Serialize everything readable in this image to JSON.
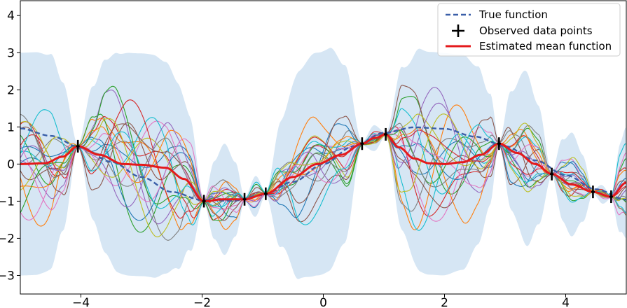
{
  "chart_data": {
    "type": "line",
    "title": "",
    "xlabel": "",
    "ylabel": "",
    "xlim": [
      -5,
      5
    ],
    "ylim": [
      -3.5,
      4.4
    ],
    "x_ticks": [
      -4,
      -2,
      0,
      2,
      4
    ],
    "x_tick_labels": [
      "−4",
      "−2",
      "0",
      "2",
      "4"
    ],
    "y_ticks": [
      -3,
      -2,
      -1,
      0,
      1,
      2,
      3,
      4
    ],
    "y_tick_labels": [
      "−3",
      "−2",
      "−1",
      "0",
      "1",
      "2",
      "3",
      "4"
    ],
    "grid": false,
    "legend": {
      "placement": "top-right",
      "entries": [
        {
          "label": "True function",
          "style": "dashed",
          "color": "#3a5fa8"
        },
        {
          "label": "Observed data points",
          "style": "plus",
          "color": "#000000"
        },
        {
          "label": "Estimated mean function",
          "style": "solid",
          "color": "#e41a1c"
        }
      ]
    },
    "observed_points": {
      "x": [
        -4.05,
        -1.97,
        -1.3,
        -0.95,
        0.64,
        1.03,
        2.9,
        3.77,
        4.45,
        4.75
      ],
      "y": [
        0.48,
        -1.0,
        -0.95,
        -0.8,
        0.55,
        0.8,
        0.55,
        -0.27,
        -0.75,
        -0.88
      ]
    },
    "true_function": {
      "x": [
        -5,
        -4.5,
        -4,
        -3.5,
        -3,
        -2.5,
        -2,
        -1.5,
        -1,
        -0.5,
        0,
        0.5,
        1,
        1.5,
        2,
        2.5,
        3,
        3.5,
        4,
        4.5,
        5
      ],
      "y": [
        0.96,
        0.76,
        0.44,
        0.06,
        -0.35,
        -0.75,
        -0.97,
        -0.99,
        -0.84,
        -0.48,
        0.0,
        0.48,
        0.84,
        0.99,
        0.95,
        0.74,
        0.48,
        0.1,
        -0.3,
        -0.68,
        -0.96
      ]
    },
    "mean_function": {
      "x": [
        -5,
        -4.6,
        -4.3,
        -4.05,
        -3.7,
        -3.3,
        -3.0,
        -2.6,
        -2.3,
        -1.97,
        -1.65,
        -1.3,
        -0.95,
        -0.5,
        -0.1,
        0.3,
        0.64,
        0.85,
        1.03,
        1.25,
        1.5,
        1.75,
        2.0,
        2.3,
        2.6,
        2.9,
        3.2,
        3.5,
        3.77,
        4.1,
        4.45,
        4.75,
        5.0
      ],
      "y": [
        0.0,
        0.02,
        0.2,
        0.48,
        0.25,
        0.0,
        -0.02,
        -0.1,
        -0.4,
        -1.0,
        -0.95,
        -0.95,
        -0.8,
        -0.35,
        0.0,
        0.25,
        0.55,
        0.7,
        0.8,
        0.45,
        0.15,
        0.02,
        0.0,
        0.05,
        0.25,
        0.55,
        0.3,
        0.0,
        -0.27,
        -0.55,
        -0.75,
        -0.88,
        -0.5
      ]
    },
    "confidence_band": {
      "x": [
        -5,
        -4.75,
        -4.5,
        -4.3,
        -4.05,
        -3.8,
        -3.6,
        -3.4,
        -3.2,
        -3.0,
        -2.8,
        -2.6,
        -2.4,
        -2.2,
        -1.97,
        -1.8,
        -1.63,
        -1.45,
        -1.3,
        -1.12,
        -0.95,
        -0.7,
        -0.4,
        -0.15,
        0.1,
        0.35,
        0.64,
        0.84,
        1.03,
        1.3,
        1.6,
        1.95,
        2.3,
        2.55,
        2.75,
        2.9,
        3.1,
        3.35,
        3.55,
        3.77,
        3.95,
        4.1,
        4.28,
        4.45,
        4.6,
        4.75,
        4.9,
        5.0
      ],
      "half_width": [
        3.0,
        3.0,
        2.9,
        2.0,
        0.05,
        1.8,
        2.6,
        2.95,
        3.0,
        3.0,
        3.0,
        2.85,
        2.5,
        1.8,
        0.05,
        1.05,
        1.5,
        1.0,
        0.05,
        0.55,
        0.05,
        1.7,
        2.8,
        3.0,
        3.0,
        2.4,
        0.05,
        0.35,
        0.05,
        2.2,
        3.0,
        3.0,
        2.9,
        2.4,
        1.5,
        0.05,
        1.6,
        2.35,
        1.6,
        0.05,
        1.1,
        1.4,
        0.9,
        0.05,
        0.25,
        0.05,
        1.2,
        1.5
      ]
    },
    "sample_functions": [
      {
        "color": "#1f77b4",
        "amp": 1.15,
        "freqs": [
          1.7,
          2.9,
          4.3
        ],
        "phases": [
          0.3,
          1.9,
          4.1
        ]
      },
      {
        "color": "#ff7f0e",
        "amp": 1.5,
        "freqs": [
          1.9,
          3.3,
          5.1
        ],
        "phases": [
          2.2,
          0.6,
          3.3
        ]
      },
      {
        "color": "#2ca02c",
        "amp": 1.3,
        "freqs": [
          2.1,
          3.7,
          4.9
        ],
        "phases": [
          4.4,
          2.8,
          1.2
        ]
      },
      {
        "color": "#d62728",
        "amp": 1.25,
        "freqs": [
          1.5,
          3.1,
          5.3
        ],
        "phases": [
          1.1,
          5.0,
          2.4
        ]
      },
      {
        "color": "#9467bd",
        "amp": 1.3,
        "freqs": [
          2.3,
          3.5,
          4.7
        ],
        "phases": [
          3.6,
          1.4,
          5.5
        ]
      },
      {
        "color": "#8c564b",
        "amp": 1.55,
        "freqs": [
          1.8,
          2.7,
          5.5
        ],
        "phases": [
          5.2,
          3.9,
          0.8
        ]
      },
      {
        "color": "#e377c2",
        "amp": 1.2,
        "freqs": [
          2.0,
          3.9,
          4.5
        ],
        "phases": [
          0.9,
          4.6,
          2.0
        ]
      },
      {
        "color": "#7f7f7f",
        "amp": 1.35,
        "freqs": [
          1.6,
          3.2,
          5.0
        ],
        "phases": [
          2.9,
          0.2,
          4.8
        ]
      },
      {
        "color": "#bcbd22",
        "amp": 1.1,
        "freqs": [
          2.4,
          2.8,
          4.4
        ],
        "phases": [
          4.0,
          2.3,
          1.7
        ]
      },
      {
        "color": "#17becf",
        "amp": 1.3,
        "freqs": [
          1.75,
          3.6,
          5.2
        ],
        "phases": [
          1.6,
          5.8,
          3.0
        ]
      },
      {
        "color": "#1f77b4",
        "amp": 1.0,
        "freqs": [
          2.2,
          3.0,
          4.8
        ],
        "phases": [
          5.6,
          1.0,
          0.4
        ]
      },
      {
        "color": "#ff7f0e",
        "amp": 1.2,
        "freqs": [
          1.65,
          3.4,
          4.6
        ],
        "phases": [
          0.5,
          3.2,
          5.9
        ]
      },
      {
        "color": "#2ca02c",
        "amp": 1.4,
        "freqs": [
          1.95,
          2.6,
          5.4
        ],
        "phases": [
          2.6,
          4.3,
          1.5
        ]
      },
      {
        "color": "#d62728",
        "amp": 1.15,
        "freqs": [
          2.5,
          3.8,
          4.2
        ],
        "phases": [
          3.3,
          0.7,
          2.7
        ]
      },
      {
        "color": "#9467bd",
        "amp": 1.05,
        "freqs": [
          1.55,
          2.95,
          5.6
        ],
        "phases": [
          4.8,
          2.0,
          3.6
        ]
      },
      {
        "color": "#8c564b",
        "amp": 1.2,
        "freqs": [
          2.15,
          3.25,
          4.95
        ],
        "phases": [
          1.3,
          5.3,
          0.1
        ]
      },
      {
        "color": "#e377c2",
        "amp": 1.3,
        "freqs": [
          1.85,
          3.55,
          4.35
        ],
        "phases": [
          5.9,
          2.5,
          4.4
        ]
      },
      {
        "color": "#7f7f7f",
        "amp": 1.1,
        "freqs": [
          2.35,
          2.75,
          5.15
        ],
        "phases": [
          0.0,
          3.7,
          2.2
        ]
      },
      {
        "color": "#bcbd22",
        "amp": 1.25,
        "freqs": [
          1.7,
          3.45,
          4.65
        ],
        "phases": [
          3.0,
          1.2,
          5.1
        ]
      },
      {
        "color": "#17becf",
        "amp": 1.45,
        "freqs": [
          2.05,
          3.15,
          5.35
        ],
        "phases": [
          4.2,
          4.9,
          0.6
        ]
      }
    ],
    "colors": {
      "band": "#d6e6f4",
      "true_function": "#3a5fa8",
      "mean_function": "#e41a1c",
      "observed": "#000000"
    }
  }
}
